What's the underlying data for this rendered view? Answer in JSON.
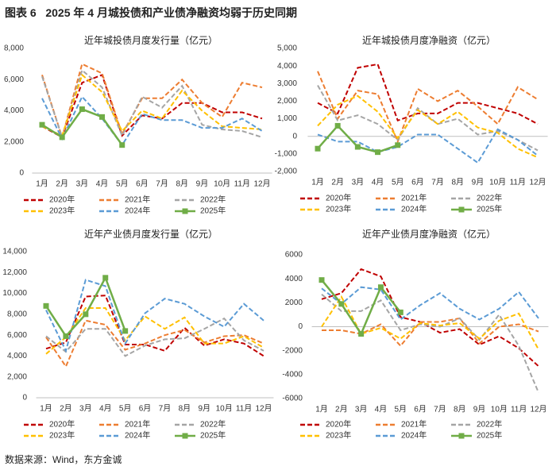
{
  "title": "图表 6   2025 年 4 月城投债和产业债净融资均弱于历史同期",
  "source": "数据来源：Wind，东方金诚",
  "chart_data": [
    {
      "type": "line",
      "title": "近年城投债月度发行量（亿元）",
      "categories": [
        "1月",
        "2月",
        "3月",
        "4月",
        "5月",
        "6月",
        "7月",
        "8月",
        "9月",
        "10月",
        "11月",
        "12月"
      ],
      "ylim": [
        0,
        8000
      ],
      "yticks": [
        0,
        {
          "value": 2000,
          "label": "2,000"
        },
        {
          "value": 4000,
          "label": "4,000"
        },
        {
          "value": 6000,
          "label": "6,000"
        },
        {
          "value": 8000,
          "label": "8,000"
        }
      ],
      "series": [
        {
          "name": "2020年",
          "color": "#c00000",
          "style": "dashed",
          "values": [
            3000,
            2300,
            5800,
            6300,
            2400,
            3700,
            3500,
            4500,
            4500,
            3900,
            3900,
            3500
          ]
        },
        {
          "name": "2021年",
          "color": "#ed7d31",
          "style": "dashed",
          "values": [
            6300,
            2300,
            7000,
            6400,
            2500,
            4800,
            4800,
            6000,
            4500,
            3600,
            5800,
            5500
          ]
        },
        {
          "name": "2022年",
          "color": "#a5a5a5",
          "style": "dashed",
          "values": [
            6200,
            2300,
            6600,
            5500,
            2400,
            4900,
            4200,
            5600,
            3100,
            2800,
            2700,
            2300
          ]
        },
        {
          "name": "2023年",
          "color": "#ffc000",
          "style": "dashed",
          "values": [
            3000,
            2400,
            6300,
            5200,
            2700,
            4000,
            3500,
            5300,
            4000,
            3000,
            2900,
            2800
          ]
        },
        {
          "name": "2024年",
          "color": "#5b9bd5",
          "style": "dashed",
          "values": [
            4800,
            2200,
            4900,
            3500,
            1800,
            3800,
            3400,
            3400,
            2900,
            2900,
            3500,
            2700
          ]
        },
        {
          "name": "2025年",
          "color": "#70ad47",
          "style": "solid",
          "marker": "square",
          "values": [
            3100,
            2300,
            4100,
            3600,
            1800,
            null,
            null,
            null,
            null,
            null,
            null,
            null
          ]
        }
      ]
    },
    {
      "type": "line",
      "title": "近年城投债月度净融资（亿元）",
      "categories": [
        "1月",
        "2月",
        "3月",
        "4月",
        "5月",
        "6月",
        "7月",
        "8月",
        "9月",
        "10月",
        "11月",
        "12月"
      ],
      "ylim": [
        -2000,
        5000
      ],
      "yticks": [
        {
          "value": -2000,
          "label": "-2,000"
        },
        {
          "value": -1000,
          "label": "-1,000"
        },
        0,
        {
          "value": 1000,
          "label": "1,000"
        },
        {
          "value": 2000,
          "label": "2,000"
        },
        {
          "value": 3000,
          "label": "3,000"
        },
        {
          "value": 4000,
          "label": "4,000"
        },
        {
          "value": 5000,
          "label": "5,000"
        }
      ],
      "series": [
        {
          "name": "2020年",
          "color": "#c00000",
          "style": "dashed",
          "values": [
            1900,
            1300,
            3900,
            4100,
            900,
            1300,
            1300,
            1900,
            1900,
            1600,
            1300,
            700
          ]
        },
        {
          "name": "2021年",
          "color": "#ed7d31",
          "style": "dashed",
          "values": [
            3700,
            1000,
            2600,
            2400,
            -300,
            2700,
            2000,
            2600,
            1700,
            700,
            2800,
            2100
          ]
        },
        {
          "name": "2022年",
          "color": "#a5a5a5",
          "style": "dashed",
          "values": [
            2900,
            900,
            1200,
            700,
            -200,
            1600,
            700,
            1000,
            100,
            300,
            -200,
            -800
          ]
        },
        {
          "name": "2023年",
          "color": "#ffc000",
          "style": "dashed",
          "values": [
            600,
            1800,
            2300,
            1400,
            -100,
            1500,
            700,
            1400,
            500,
            200,
            -700,
            -1200
          ]
        },
        {
          "name": "2024年",
          "color": "#5b9bd5",
          "style": "dashed",
          "values": [
            100,
            -300,
            -300,
            -900,
            -600,
            100,
            100,
            -700,
            -1500,
            400,
            -200,
            -1100
          ]
        },
        {
          "name": "2025年",
          "color": "#70ad47",
          "style": "solid",
          "marker": "square",
          "values": [
            -700,
            600,
            -600,
            -900,
            -500,
            null,
            null,
            null,
            null,
            null,
            null,
            null
          ]
        }
      ]
    },
    {
      "type": "line",
      "title": "近年产业债月度发行量（亿元）",
      "categories": [
        "1月",
        "2月",
        "3月",
        "4月",
        "5月",
        "6月",
        "7月",
        "8月",
        "9月",
        "10月",
        "11月",
        "12月"
      ],
      "ylim": [
        0,
        14000
      ],
      "yticks": [
        0,
        {
          "value": 2000,
          "label": "2,000"
        },
        {
          "value": 4000,
          "label": "4,000"
        },
        {
          "value": 6000,
          "label": "6,000"
        },
        {
          "value": 8000,
          "label": "8,000"
        },
        {
          "value": 10000,
          "label": "10,000"
        },
        {
          "value": 12000,
          "label": "12,000"
        },
        {
          "value": 14000,
          "label": "14,000"
        }
      ],
      "series": [
        {
          "name": "2020年",
          "color": "#c00000",
          "style": "dashed",
          "values": [
            4700,
            5300,
            9700,
            9800,
            5100,
            5100,
            4500,
            6700,
            5000,
            5600,
            5200,
            4000
          ]
        },
        {
          "name": "2021年",
          "color": "#ed7d31",
          "style": "dashed",
          "values": [
            5800,
            3000,
            7400,
            7000,
            4600,
            5200,
            6000,
            6500,
            5300,
            5900,
            6000,
            5200
          ]
        },
        {
          "name": "2022年",
          "color": "#a5a5a5",
          "style": "dashed",
          "values": [
            5900,
            4400,
            6600,
            6600,
            4000,
            5000,
            5600,
            5700,
            6600,
            7600,
            5500,
            4500
          ]
        },
        {
          "name": "2023年",
          "color": "#ffc000",
          "style": "dashed",
          "values": [
            4200,
            5800,
            8600,
            8600,
            5500,
            7800,
            6600,
            7700,
            5200,
            5200,
            5900,
            4800
          ]
        },
        {
          "name": "2024年",
          "color": "#5b9bd5",
          "style": "dashed",
          "values": [
            8400,
            4500,
            11300,
            10700,
            5200,
            8100,
            9500,
            9000,
            7800,
            6800,
            9000,
            7400
          ]
        },
        {
          "name": "2025年",
          "color": "#70ad47",
          "style": "solid",
          "marker": "square",
          "values": [
            8800,
            5900,
            8000,
            11500,
            6400,
            null,
            null,
            null,
            null,
            null,
            null,
            null
          ]
        }
      ]
    },
    {
      "type": "line",
      "title": "近年产业债月度净融资（亿元）",
      "categories": [
        "1月",
        "2月",
        "3月",
        "4月",
        "5月",
        "6月",
        "7月",
        "8月",
        "9月",
        "10月",
        "11月",
        "12月"
      ],
      "ylim": [
        -6000,
        6000
      ],
      "yticks": [
        -6000,
        -4000,
        -2000,
        0,
        2000,
        4000,
        6000
      ],
      "series": [
        {
          "name": "2020年",
          "color": "#c00000",
          "style": "dashed",
          "values": [
            2300,
            2800,
            4800,
            4200,
            800,
            400,
            -500,
            -200,
            -1500,
            -800,
            -1800,
            -3300
          ]
        },
        {
          "name": "2021年",
          "color": "#ed7d31",
          "style": "dashed",
          "values": [
            -300,
            -300,
            -600,
            200,
            -1600,
            400,
            400,
            700,
            -1400,
            0,
            200,
            -400
          ]
        },
        {
          "name": "2022年",
          "color": "#a5a5a5",
          "style": "dashed",
          "values": [
            2700,
            1300,
            1300,
            2200,
            -300,
            200,
            0,
            700,
            -1100,
            1000,
            -1600,
            -5500
          ]
        },
        {
          "name": "2023年",
          "color": "#ffc000",
          "style": "dashed",
          "values": [
            0,
            2500,
            -600,
            -100,
            -1000,
            300,
            100,
            300,
            -1000,
            500,
            1100,
            -1900
          ]
        },
        {
          "name": "2024年",
          "color": "#5b9bd5",
          "style": "dashed",
          "values": [
            3200,
            1900,
            3300,
            3100,
            600,
            1800,
            2800,
            1500,
            600,
            1500,
            2900,
            700
          ]
        },
        {
          "name": "2025年",
          "color": "#70ad47",
          "style": "solid",
          "marker": "square",
          "values": [
            3900,
            1900,
            -600,
            3300,
            1200,
            null,
            null,
            null,
            null,
            null,
            null,
            null
          ]
        }
      ]
    }
  ]
}
